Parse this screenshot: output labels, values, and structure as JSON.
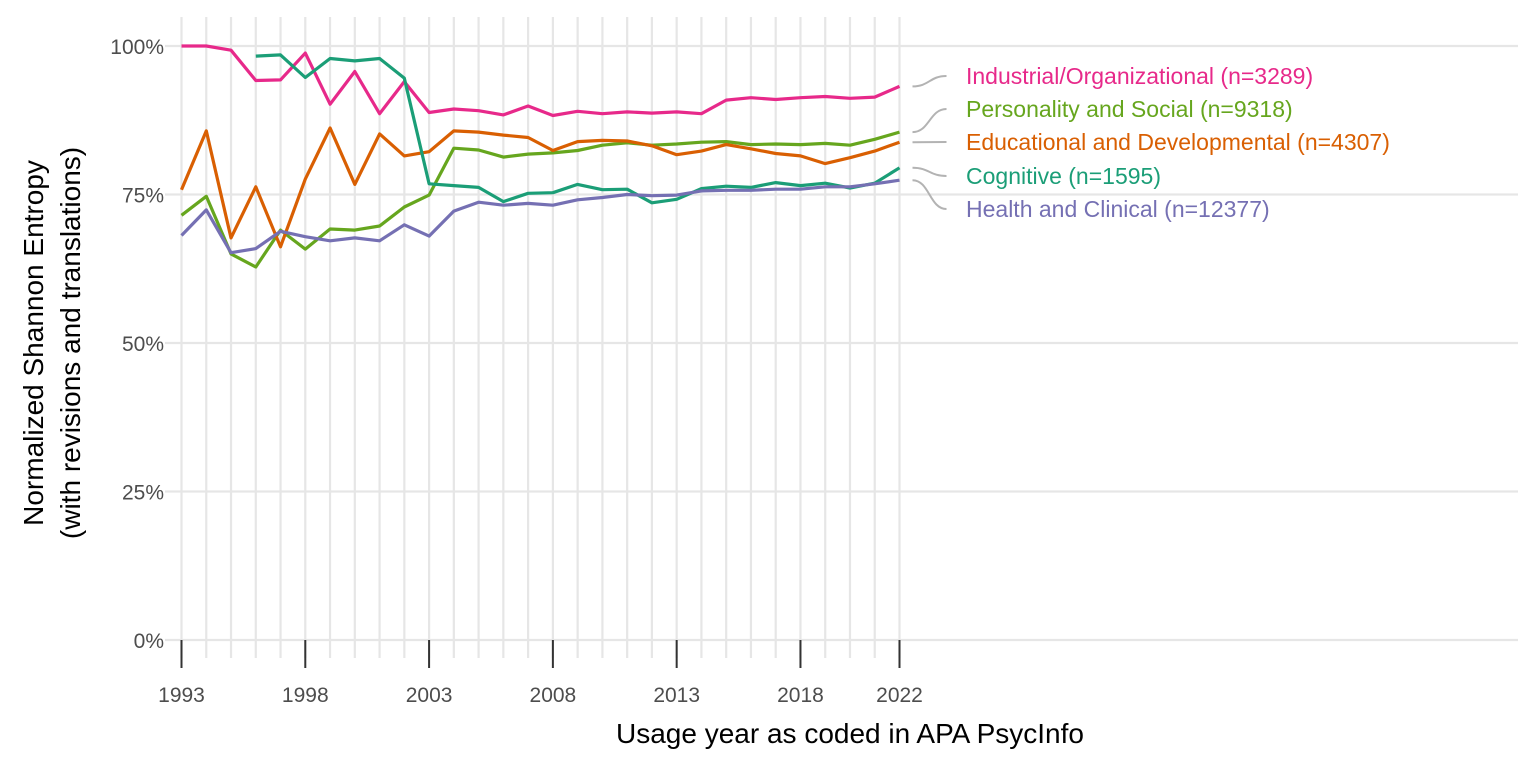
{
  "chart_data": {
    "type": "line",
    "title": "",
    "xlabel": "Usage year as coded in APA PsycInfo",
    "ylabel_line1": "Normalized Shannon Entropy",
    "ylabel_line2": "(with revisions and translations)",
    "xlim": [
      1993,
      2022
    ],
    "ylim": [
      0,
      1
    ],
    "x_ticks": [
      1993,
      1998,
      2003,
      2008,
      2013,
      2018,
      2022
    ],
    "x_tick_labels": [
      "1993",
      "1998",
      "2003",
      "2008",
      "2013",
      "2018",
      "2022"
    ],
    "y_ticks": [
      0,
      0.25,
      0.5,
      0.75,
      1.0
    ],
    "y_tick_labels": [
      "0%",
      "25%",
      "50%",
      "75%",
      "100%"
    ],
    "grid": true,
    "legend": "direct labels at right end of lines",
    "connector_color": "#b3b3b3",
    "series": [
      {
        "name": "Industrial/Organizational (n=3289)",
        "color": "#e7298a",
        "x": [
          1993,
          1994,
          1995,
          1996,
          1997,
          1998,
          1999,
          2000,
          2001,
          2002,
          2003,
          2004,
          2005,
          2006,
          2007,
          2008,
          2009,
          2010,
          2011,
          2012,
          2013,
          2014,
          2015,
          2016,
          2017,
          2018,
          2019,
          2020,
          2021,
          2022
        ],
        "y": [
          1.0,
          1.0,
          0.993,
          0.942,
          0.943,
          0.988,
          0.902,
          0.957,
          0.886,
          0.94,
          0.888,
          0.894,
          0.891,
          0.884,
          0.899,
          0.883,
          0.89,
          0.886,
          0.889,
          0.887,
          0.889,
          0.886,
          0.909,
          0.913,
          0.91,
          0.913,
          0.915,
          0.912,
          0.914,
          0.932
        ]
      },
      {
        "name": "Personality and Social (n=9318)",
        "color": "#66a61e",
        "x": [
          1993,
          1994,
          1995,
          1996,
          1997,
          1998,
          1999,
          2000,
          2001,
          2002,
          2003,
          2004,
          2005,
          2006,
          2007,
          2008,
          2009,
          2010,
          2011,
          2012,
          2013,
          2014,
          2015,
          2016,
          2017,
          2018,
          2019,
          2020,
          2021,
          2022
        ],
        "y": [
          0.715,
          0.747,
          0.65,
          0.628,
          0.69,
          0.658,
          0.692,
          0.69,
          0.697,
          0.729,
          0.749,
          0.828,
          0.825,
          0.813,
          0.818,
          0.82,
          0.824,
          0.833,
          0.837,
          0.833,
          0.835,
          0.838,
          0.839,
          0.834,
          0.835,
          0.834,
          0.836,
          0.833,
          0.843,
          0.855
        ]
      },
      {
        "name": "Educational and Developmental (n=4307)",
        "color": "#d95f02",
        "x": [
          1993,
          1994,
          1995,
          1996,
          1997,
          1998,
          1999,
          2000,
          2001,
          2002,
          2003,
          2004,
          2005,
          2006,
          2007,
          2008,
          2009,
          2010,
          2011,
          2012,
          2013,
          2014,
          2015,
          2016,
          2017,
          2018,
          2019,
          2020,
          2021,
          2022
        ],
        "y": [
          0.758,
          0.857,
          0.677,
          0.763,
          0.662,
          0.776,
          0.862,
          0.767,
          0.852,
          0.815,
          0.822,
          0.857,
          0.855,
          0.85,
          0.846,
          0.824,
          0.839,
          0.841,
          0.84,
          0.832,
          0.817,
          0.823,
          0.834,
          0.827,
          0.819,
          0.815,
          0.802,
          0.812,
          0.823,
          0.838
        ]
      },
      {
        "name": "Cognitive (n=1595)",
        "color": "#1b9e77",
        "x": [
          1996,
          1997,
          1998,
          1999,
          2000,
          2001,
          2002,
          2003,
          2004,
          2005,
          2006,
          2007,
          2008,
          2009,
          2010,
          2011,
          2012,
          2013,
          2014,
          2015,
          2016,
          2017,
          2018,
          2019,
          2020,
          2021,
          2022
        ],
        "y": [
          0.983,
          0.985,
          0.947,
          0.979,
          0.975,
          0.979,
          0.946,
          0.768,
          0.765,
          0.762,
          0.738,
          0.752,
          0.753,
          0.767,
          0.758,
          0.759,
          0.736,
          0.742,
          0.76,
          0.764,
          0.762,
          0.77,
          0.765,
          0.769,
          0.761,
          0.769,
          0.795
        ]
      },
      {
        "name": "Health and Clinical (n=12377)",
        "color": "#7570b3",
        "x": [
          1993,
          1994,
          1995,
          1996,
          1997,
          1998,
          1999,
          2000,
          2001,
          2002,
          2003,
          2004,
          2005,
          2006,
          2007,
          2008,
          2009,
          2010,
          2011,
          2012,
          2013,
          2014,
          2015,
          2016,
          2017,
          2018,
          2019,
          2020,
          2021,
          2022
        ],
        "y": [
          0.681,
          0.724,
          0.652,
          0.659,
          0.688,
          0.679,
          0.672,
          0.677,
          0.672,
          0.699,
          0.68,
          0.722,
          0.737,
          0.732,
          0.735,
          0.732,
          0.741,
          0.745,
          0.75,
          0.748,
          0.749,
          0.756,
          0.757,
          0.757,
          0.759,
          0.759,
          0.763,
          0.763,
          0.768,
          0.774
        ]
      }
    ]
  }
}
